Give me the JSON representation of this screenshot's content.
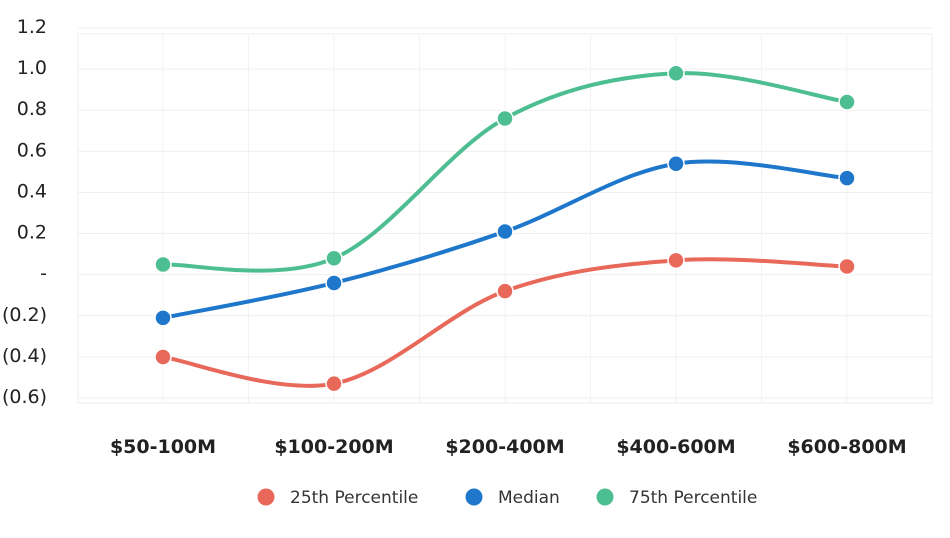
{
  "chart_data": {
    "type": "line",
    "categories": [
      "$50-100M",
      "$100-200M",
      "$200-400M",
      "$400-600M",
      "$600-800M"
    ],
    "y_tick_labels": [
      "1.2",
      "1.0",
      "0.8",
      "0.6",
      "0.4",
      "0.2",
      "-",
      "(0.2)",
      "(0.4)",
      "(0.6)"
    ],
    "y_tick_values": [
      1.2,
      1.0,
      0.8,
      0.6,
      0.4,
      0.2,
      0,
      -0.2,
      -0.4,
      -0.6
    ],
    "ylim": [
      -0.6,
      1.2
    ],
    "grid": true,
    "legend_position": "bottom",
    "series": [
      {
        "name": "25th Percentile",
        "color": "#e8685a",
        "values": [
          -0.41,
          -0.54,
          -0.09,
          0.06,
          0.03
        ]
      },
      {
        "name": "Median",
        "color": "#1f77cc",
        "values": [
          -0.22,
          -0.05,
          0.2,
          0.53,
          0.46
        ]
      },
      {
        "name": "75th Percentile",
        "color": "#4dbd92",
        "values": [
          0.04,
          0.07,
          0.75,
          0.97,
          0.83
        ]
      }
    ]
  }
}
